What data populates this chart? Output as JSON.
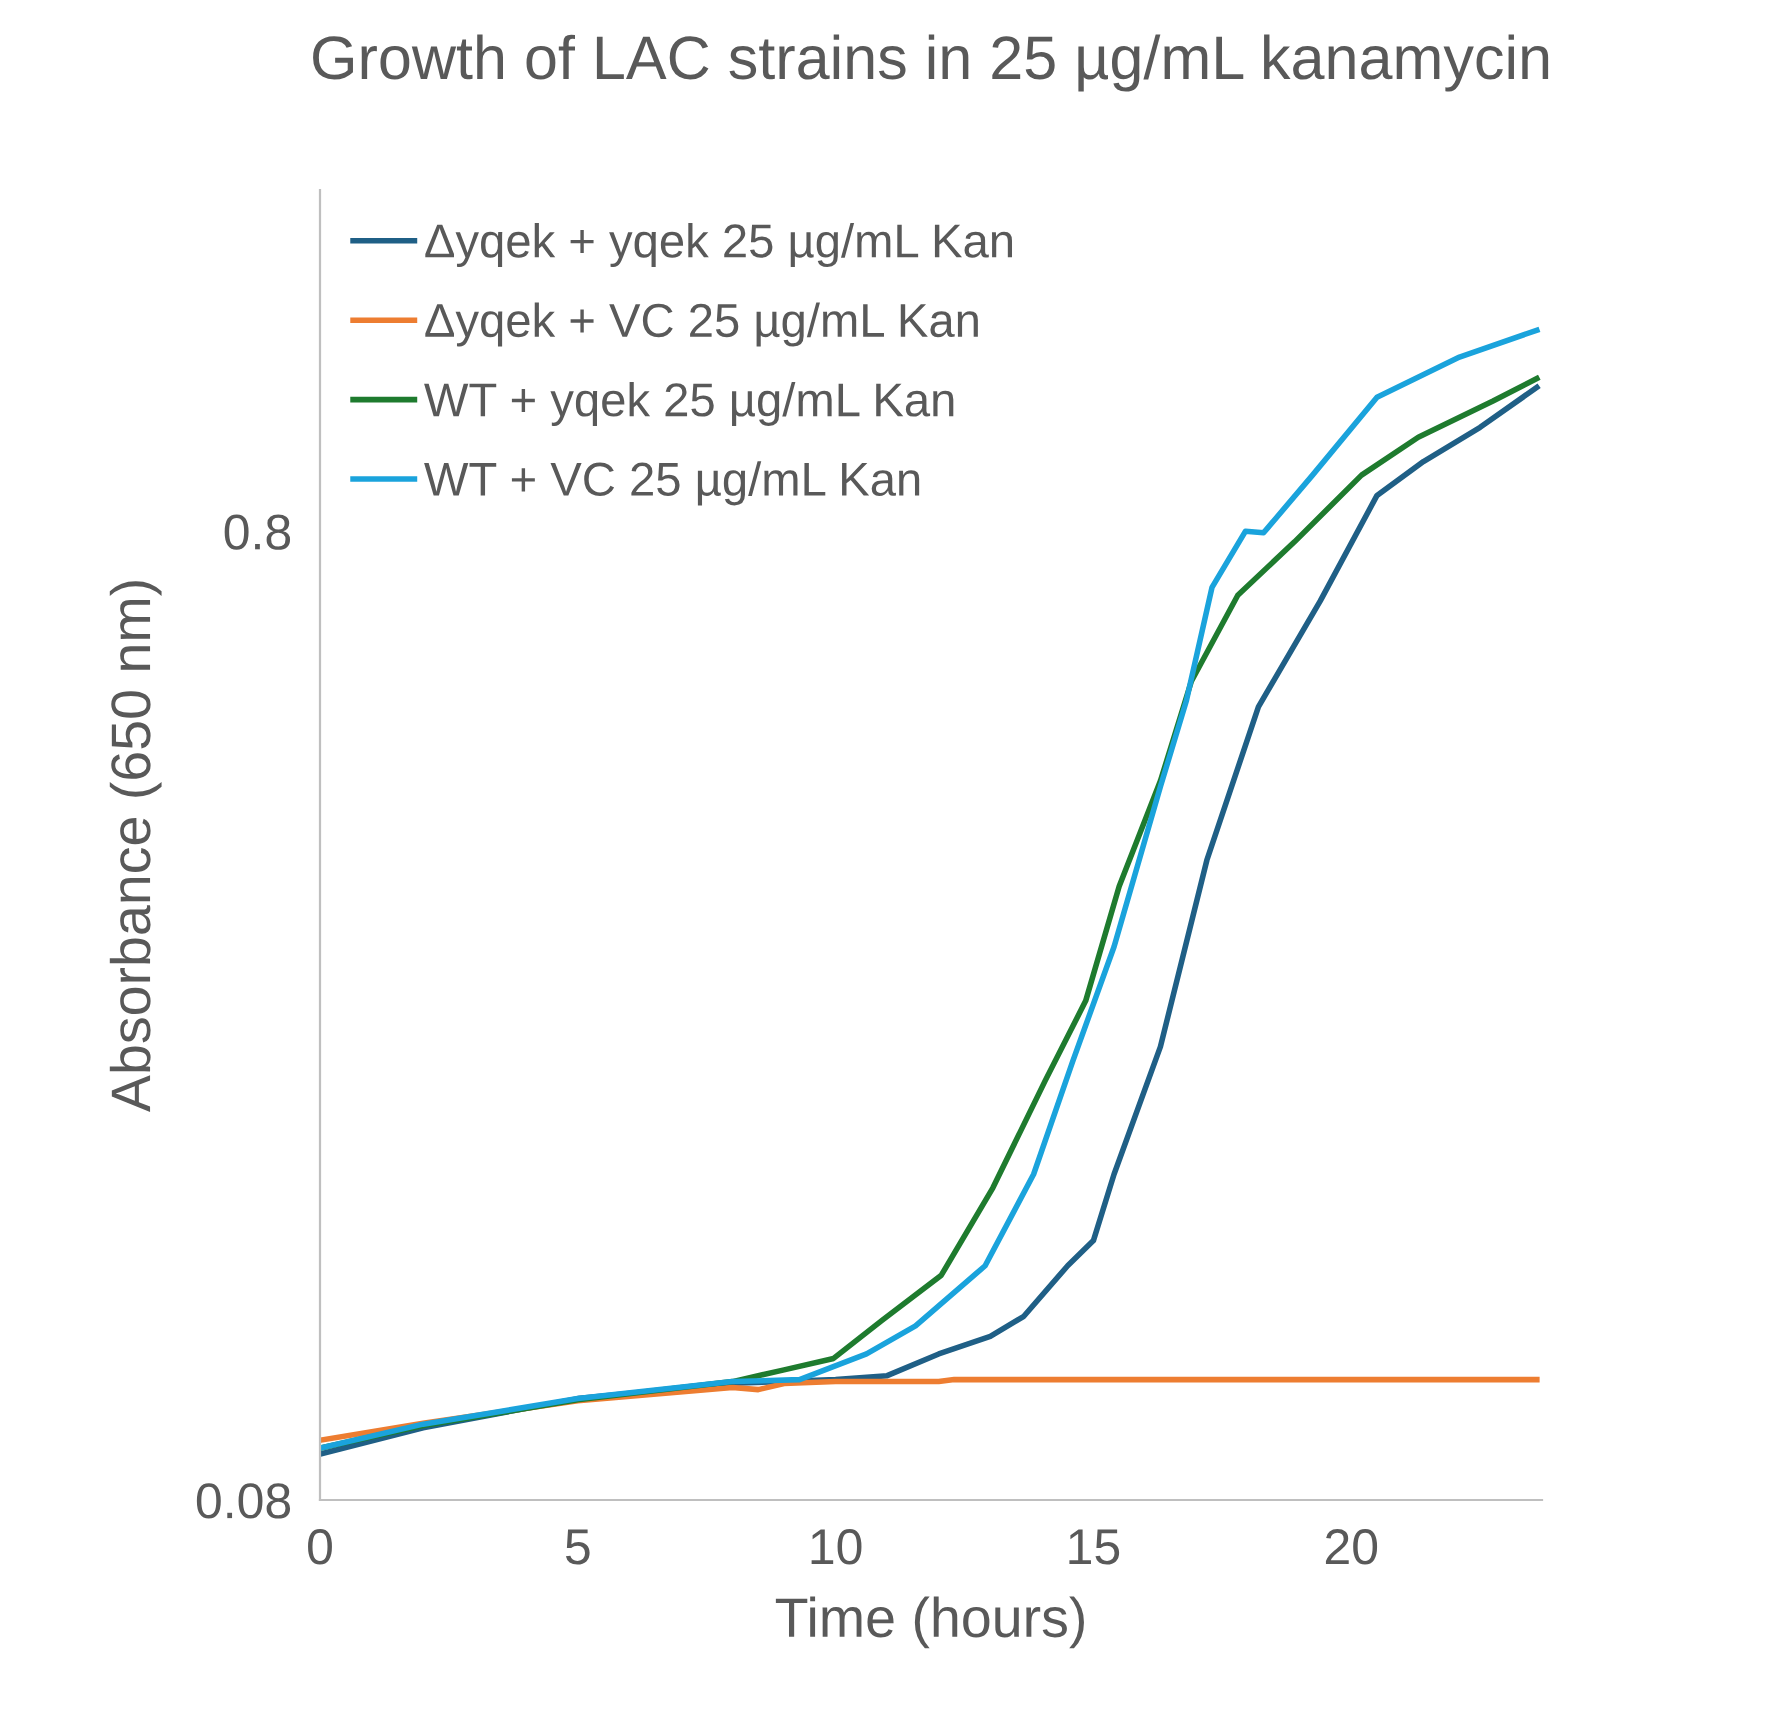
{
  "chart_data": {
    "type": "line",
    "title": "Growth of LAC strains in 25 µg/mL kanamycin",
    "xlabel": "Time (hours)",
    "ylabel": "Absorbance (650 nm)",
    "log": "y",
    "xlim": [
      0,
      23.7
    ],
    "xticks": [
      0,
      5,
      10,
      15,
      20
    ],
    "ylim": [
      0.08,
      1.8
    ],
    "yticks": [
      0.08,
      0.8
    ],
    "grid": false,
    "legend": "top left",
    "marker": "none",
    "line_style": "solid",
    "series": [
      {
        "name": "Δyqek + yqek 25 µg/mL Kan",
        "color": "#1f5f86",
        "x": [
          0,
          2,
          5,
          8,
          10,
          11,
          12,
          13,
          13.65,
          14.5,
          15,
          15.4,
          16.3,
          17.2,
          18.2,
          19.4,
          20.5,
          21.4,
          22.5,
          23.6
        ],
        "values": [
          0.0892,
          0.095,
          0.1018,
          0.1056,
          0.1065,
          0.1075,
          0.1132,
          0.118,
          0.1238,
          0.1396,
          0.1482,
          0.1735,
          0.235,
          0.366,
          0.527,
          0.678,
          0.871,
          0.944,
          1.024,
          1.126
        ]
      },
      {
        "name": "Δyqek + VC 25 µg/mL Kan",
        "color": "#ed7d31",
        "x": [
          0,
          2,
          5,
          8,
          8.5,
          9,
          10,
          12,
          12.3,
          23.6
        ],
        "values": [
          0.0922,
          0.096,
          0.1013,
          0.1045,
          0.104,
          0.1055,
          0.106,
          0.106,
          0.1065,
          0.1065
        ]
      },
      {
        "name": "WT + yqek 25 µg/mL Kan",
        "color": "#1e7b2e",
        "x": [
          0,
          2,
          5,
          8,
          9,
          9.96,
          10.9,
          12.05,
          13.05,
          14.07,
          14.85,
          15.5,
          16.3,
          16.9,
          17.8,
          18.9,
          20.2,
          21.3,
          22.75,
          23.6
        ],
        "values": [
          0.0905,
          0.0955,
          0.1015,
          0.106,
          0.109,
          0.112,
          0.1226,
          0.1365,
          0.168,
          0.217,
          0.262,
          0.344,
          0.442,
          0.56,
          0.687,
          0.78,
          0.914,
          1.0,
          1.09,
          1.15
        ]
      },
      {
        "name": "WT + VC 25 µg/mL Kan",
        "color": "#1aa3dc",
        "x": [
          0,
          2,
          5,
          8,
          9.3,
          10.6,
          11.55,
          12.9,
          13.84,
          14.6,
          15.4,
          16.3,
          16.8,
          17.3,
          17.95,
          18.3,
          19.25,
          20.5,
          22.1,
          23.6
        ],
        "values": [
          0.0905,
          0.0958,
          0.1018,
          0.106,
          0.1065,
          0.1132,
          0.121,
          0.1396,
          0.1735,
          0.227,
          0.298,
          0.436,
          0.534,
          0.7,
          0.8,
          0.797,
          0.914,
          1.1,
          1.21,
          1.29
        ]
      }
    ]
  }
}
